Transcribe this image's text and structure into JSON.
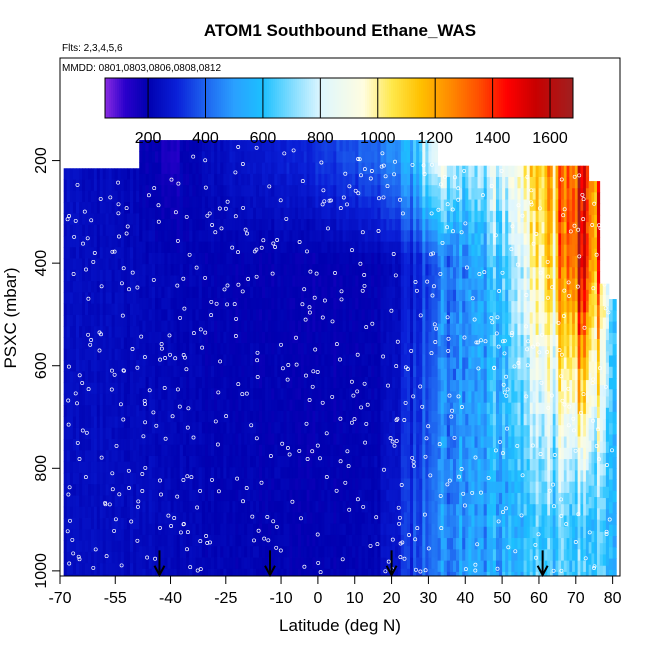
{
  "chart_data": {
    "type": "heatmap",
    "title": "ATOM1 Southbound Ethane_WAS",
    "flights_note": "Flts: 2,3,4,5,6",
    "dates_note": "MMDD: 0801,0803,0806,0808,0812",
    "xlabel": "Latitude (deg N)",
    "ylabel": "PSXC (mbar)",
    "xlim": [
      -70,
      82
    ],
    "ylim": [
      1010,
      0
    ],
    "x_ticks": [
      -70,
      -55,
      -40,
      -25,
      -10,
      0,
      10,
      20,
      30,
      40,
      50,
      60,
      70,
      80
    ],
    "y_ticks": [
      200,
      400,
      600,
      800,
      1000
    ],
    "colorbar": {
      "min": 50,
      "max": 1680,
      "ticks": [
        200,
        400,
        600,
        800,
        1000,
        1200,
        1400,
        1600
      ],
      "stops": [
        {
          "v": 50,
          "c": "#8a2be2"
        },
        {
          "v": 120,
          "c": "#2a00cc"
        },
        {
          "v": 200,
          "c": "#0000b0"
        },
        {
          "v": 300,
          "c": "#0a20d8"
        },
        {
          "v": 400,
          "c": "#1e64f0"
        },
        {
          "v": 500,
          "c": "#2aa0ff"
        },
        {
          "v": 600,
          "c": "#1cc0ff"
        },
        {
          "v": 700,
          "c": "#80dcff"
        },
        {
          "v": 800,
          "c": "#ddf6ff"
        },
        {
          "v": 950,
          "c": "#fffde0"
        },
        {
          "v": 1050,
          "c": "#ffe84a"
        },
        {
          "v": 1150,
          "c": "#ffc000"
        },
        {
          "v": 1250,
          "c": "#ff8c00"
        },
        {
          "v": 1350,
          "c": "#ff5000"
        },
        {
          "v": 1450,
          "c": "#ff0000"
        },
        {
          "v": 1550,
          "c": "#c80000"
        },
        {
          "v": 1680,
          "c": "#a02020"
        }
      ]
    },
    "grid": false,
    "legend": "top",
    "columns": [
      {
        "lat": -68,
        "top": 215,
        "base": 250,
        "mid": 240,
        "low": 240
      },
      {
        "lat": -60,
        "top": 215,
        "base": 230,
        "mid": 235,
        "low": 240
      },
      {
        "lat": -52,
        "top": 215,
        "base": 220,
        "mid": 230,
        "low": 235
      },
      {
        "lat": -45,
        "top": 160,
        "base": 190,
        "mid": 220,
        "low": 230
      },
      {
        "lat": -40,
        "top": 160,
        "base": 150,
        "mid": 215,
        "low": 225
      },
      {
        "lat": -35,
        "top": 160,
        "base": 200,
        "mid": 210,
        "low": 220
      },
      {
        "lat": -28,
        "top": 160,
        "base": 240,
        "mid": 205,
        "low": 215
      },
      {
        "lat": -20,
        "top": 160,
        "base": 260,
        "mid": 200,
        "low": 210
      },
      {
        "lat": -12,
        "top": 160,
        "base": 280,
        "mid": 200,
        "low": 205
      },
      {
        "lat": -5,
        "top": 160,
        "base": 300,
        "mid": 195,
        "low": 200
      },
      {
        "lat": 2,
        "top": 160,
        "base": 330,
        "mid": 190,
        "low": 200
      },
      {
        "lat": 8,
        "top": 160,
        "base": 360,
        "mid": 195,
        "low": 205
      },
      {
        "lat": 14,
        "top": 160,
        "base": 400,
        "mid": 200,
        "low": 215
      },
      {
        "lat": 20,
        "top": 160,
        "base": 460,
        "mid": 220,
        "low": 260
      },
      {
        "lat": 25,
        "top": 160,
        "base": 560,
        "mid": 280,
        "low": 340
      },
      {
        "lat": 30,
        "top": 160,
        "base": 760,
        "mid": 340,
        "low": 400
      },
      {
        "lat": 35,
        "top": 210,
        "base": 820,
        "mid": 420,
        "low": 450
      },
      {
        "lat": 40,
        "top": 210,
        "base": 760,
        "mid": 480,
        "low": 500
      },
      {
        "lat": 45,
        "top": 210,
        "base": 800,
        "mid": 560,
        "low": 530
      },
      {
        "lat": 50,
        "top": 210,
        "base": 900,
        "mid": 650,
        "low": 560
      },
      {
        "lat": 55,
        "top": 210,
        "base": 980,
        "mid": 820,
        "low": 580
      },
      {
        "lat": 60,
        "top": 210,
        "base": 1050,
        "mid": 950,
        "low": 600
      },
      {
        "lat": 63,
        "top": 210,
        "base": 1150,
        "mid": 1050,
        "low": 620
      },
      {
        "lat": 66,
        "top": 210,
        "base": 1250,
        "mid": 1200,
        "low": 640
      },
      {
        "lat": 69,
        "top": 210,
        "base": 1400,
        "mid": 1400,
        "low": 650
      },
      {
        "lat": 72,
        "top": 210,
        "base": 1500,
        "mid": 1550,
        "low": 660
      },
      {
        "lat": 75,
        "top": 240,
        "base": 1350,
        "mid": 1300,
        "low": 640
      },
      {
        "lat": 78,
        "top": 440,
        "base": 700,
        "mid": 1000,
        "low": 620
      },
      {
        "lat": 80,
        "top": 470,
        "base": 650,
        "mid": 700,
        "low": 600
      }
    ],
    "profile_markers_lat": [
      -43,
      -13,
      20,
      61
    ],
    "n_samples": 620
  }
}
